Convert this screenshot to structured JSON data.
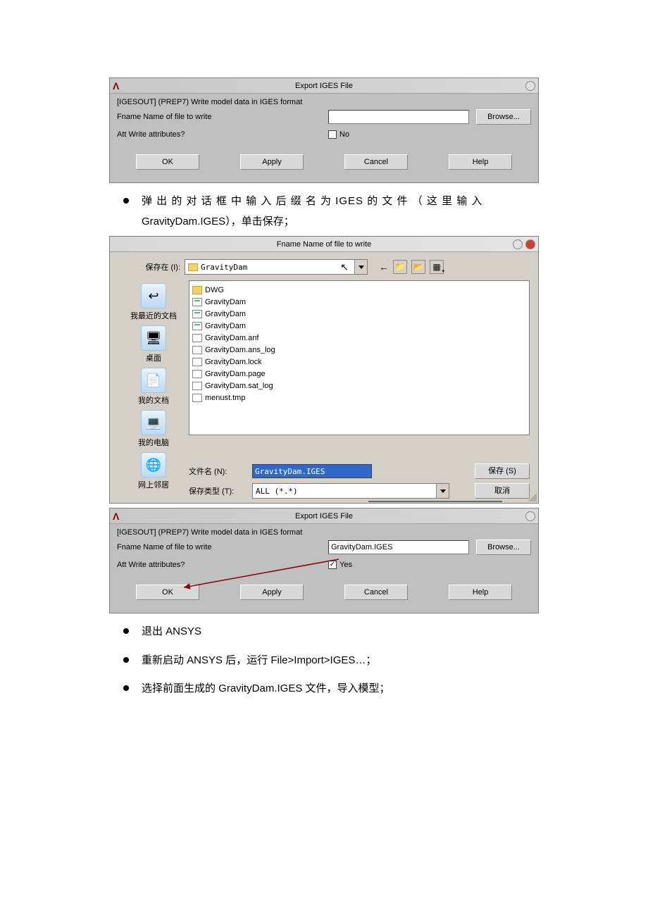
{
  "dialog1": {
    "title": "Export IGES File",
    "line1": "[IGESOUT] (PREP7)  Write model data in IGES format",
    "fname_label": "Fname   Name of file to write",
    "att_label": "Att      Write attributes?",
    "checkbox_text": "No",
    "browse": "Browse...",
    "ok": "OK",
    "apply": "Apply",
    "cancel": "Cancel",
    "help": "Help"
  },
  "para1": "弹 出 的 对 话 框 中 输 入 后 缀 名 为 IGES 的 文 件 （ 这 里 输 入",
  "para1b": "GravityDam.IGES），单击保存；",
  "savedlg": {
    "title": "Fname Name of file to write",
    "savein_label": "保存在 (I):",
    "folder": "GravityDam",
    "places": {
      "recent": "我最近的文档",
      "desktop": "桌面",
      "mydocs": "我的文档",
      "mycomputer": "我的电脑",
      "network": "网上邻居"
    },
    "files": [
      {
        "name": "DWG",
        "type": "folder"
      },
      {
        "name": "GravityDam",
        "type": "doc"
      },
      {
        "name": "GravityDam",
        "type": "doc"
      },
      {
        "name": "GravityDam",
        "type": "doc"
      },
      {
        "name": "GravityDam.anf",
        "type": "gen"
      },
      {
        "name": "GravityDam.ans_log",
        "type": "gen"
      },
      {
        "name": "GravityDam.lock",
        "type": "gen"
      },
      {
        "name": "GravityDam.page",
        "type": "gen"
      },
      {
        "name": "GravityDam.sat_log",
        "type": "gen"
      },
      {
        "name": "menust.tmp",
        "type": "gen"
      }
    ],
    "filename_label": "文件名 (N):",
    "filename_value": "GravityDam.IGES",
    "filetype_label": "保存类型 (T):",
    "filetype_value": "ALL (*.*)",
    "save_btn": "保存 (S)",
    "cancel_btn": "取消"
  },
  "dialog3": {
    "title": "Export IGES File",
    "line1": "[IGESOUT] (PREP7)  Write model data in IGES format",
    "fname_label": "Fname   Name of file to write",
    "fname_value": "GravityDam.IGES",
    "att_label": "Att      Write attributes?",
    "checkbox_text": "Yes",
    "checkbox_checked": true,
    "browse": "Browse...",
    "ok": "OK",
    "apply": "Apply",
    "cancel": "Cancel",
    "help": "Help"
  },
  "bul2": "退出 ANSYS",
  "bul3": "重新启动 ANSYS 后，运行 File>Import>IGES…；",
  "bul4": "选择前面生成的 GravityDam.IGES 文件，导入模型；",
  "colors": {
    "dialog_bg": "#c0c0c0",
    "win_bg": "#d4d0c8",
    "highlight": "#316ac5",
    "annotation": "#8b0000"
  }
}
